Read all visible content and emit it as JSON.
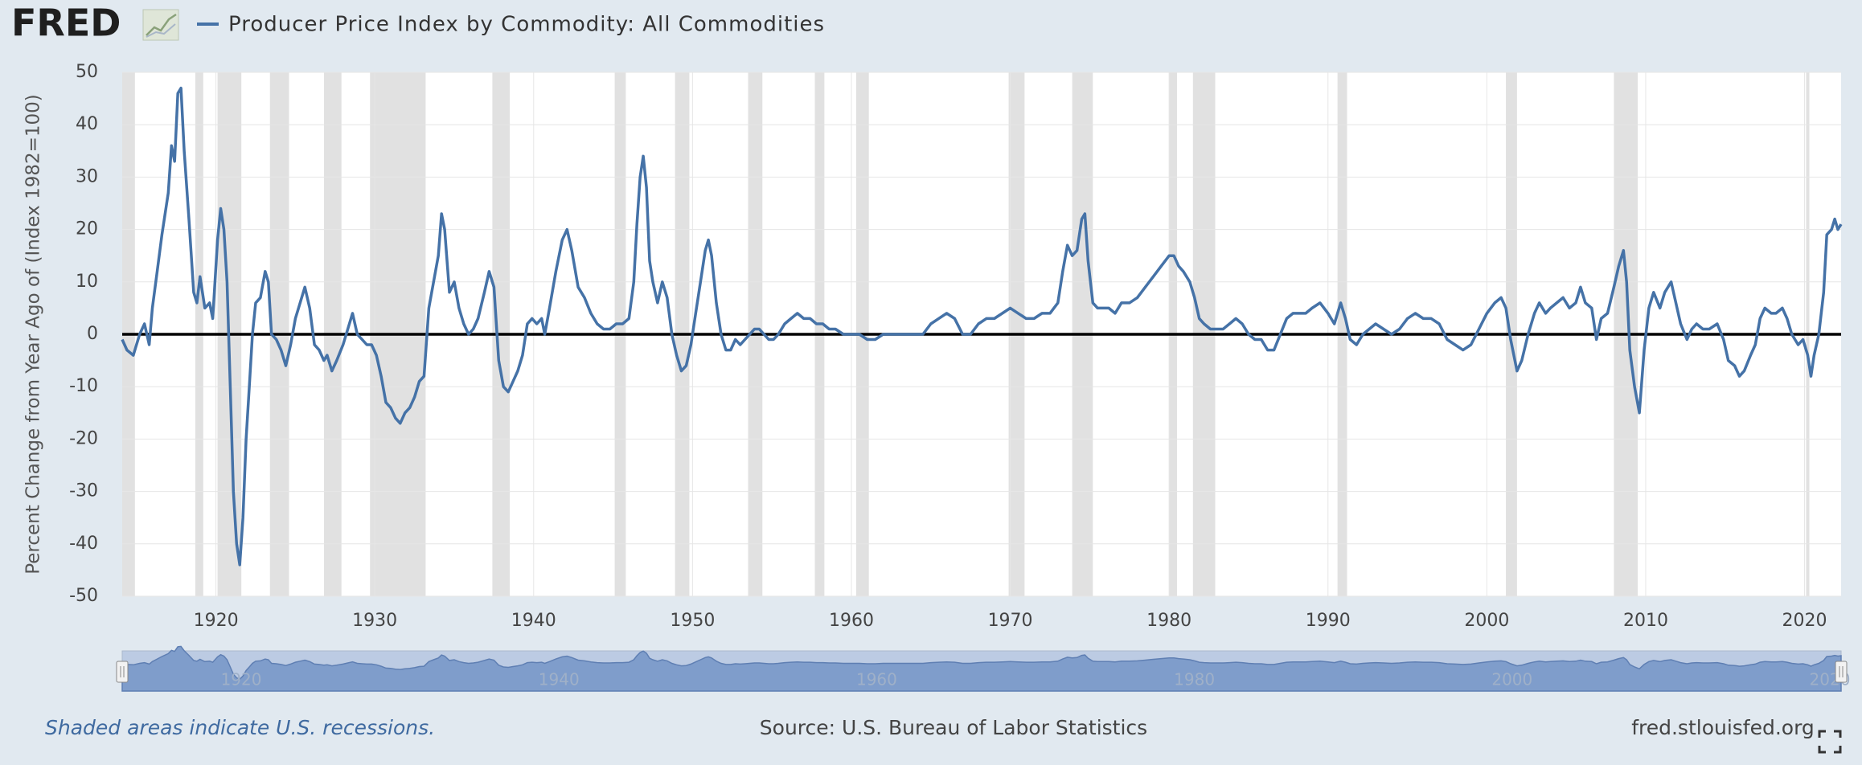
{
  "chart_data": {
    "type": "line",
    "logo": "FRED",
    "y_label": "Percent Change from Year Ago of (Index 1982=100)",
    "footer_note": "Shaded areas indicate U.S. recessions.",
    "source": "Source: U.S. Bureau of Labor Statistics",
    "site": "fred.stlouisfed.org",
    "xlim": [
      1914.1,
      2022.3
    ],
    "xticks": [
      1920,
      1930,
      1940,
      1950,
      1960,
      1970,
      1980,
      1990,
      2000,
      2010,
      2020
    ],
    "navigator_ticks": [
      1920,
      1940,
      1960,
      1980,
      2000,
      2020
    ],
    "ylim": [
      -50,
      50
    ],
    "yticks": [
      -50,
      -40,
      -30,
      -20,
      -10,
      0,
      10,
      20,
      30,
      40,
      50
    ],
    "grid": true,
    "zero_line": true,
    "recession_color": "#e1e1e1",
    "recessions": [
      [
        1914.1,
        1914.9
      ],
      [
        1918.7,
        1919.2
      ],
      [
        1920.1,
        1921.6
      ],
      [
        1923.4,
        1924.6
      ],
      [
        1926.8,
        1927.9
      ],
      [
        1929.7,
        1933.2
      ],
      [
        1937.4,
        1938.5
      ],
      [
        1945.1,
        1945.8
      ],
      [
        1948.9,
        1949.8
      ],
      [
        1953.5,
        1954.4
      ],
      [
        1957.7,
        1958.3
      ],
      [
        1960.3,
        1961.1
      ],
      [
        1969.9,
        1970.9
      ],
      [
        1973.9,
        1975.2
      ],
      [
        1980.0,
        1980.5
      ],
      [
        1981.5,
        1982.9
      ],
      [
        1990.6,
        1991.2
      ],
      [
        2001.2,
        2001.9
      ],
      [
        2008.0,
        2009.5
      ],
      [
        2020.1,
        2020.3
      ]
    ],
    "x": [
      1914.1,
      1914.4,
      1914.8,
      1915.2,
      1915.5,
      1915.8,
      1916.0,
      1916.3,
      1916.6,
      1917.0,
      1917.2,
      1917.4,
      1917.6,
      1917.8,
      1918.0,
      1918.3,
      1918.6,
      1918.8,
      1919.0,
      1919.3,
      1919.6,
      1919.8,
      1920.1,
      1920.3,
      1920.5,
      1920.7,
      1920.9,
      1921.1,
      1921.3,
      1921.5,
      1921.7,
      1921.9,
      1922.1,
      1922.3,
      1922.5,
      1922.8,
      1923.1,
      1923.3,
      1923.5,
      1923.8,
      1924.1,
      1924.4,
      1924.7,
      1925.0,
      1925.3,
      1925.6,
      1925.9,
      1926.2,
      1926.5,
      1926.8,
      1927.0,
      1927.3,
      1927.6,
      1928.0,
      1928.3,
      1928.6,
      1928.9,
      1929.2,
      1929.5,
      1929.8,
      1930.1,
      1930.4,
      1930.7,
      1931.0,
      1931.3,
      1931.6,
      1931.9,
      1932.2,
      1932.5,
      1932.8,
      1933.1,
      1933.4,
      1933.7,
      1934.0,
      1934.2,
      1934.4,
      1934.7,
      1935.0,
      1935.3,
      1935.6,
      1935.9,
      1936.2,
      1936.5,
      1936.9,
      1937.2,
      1937.5,
      1937.8,
      1938.1,
      1938.4,
      1938.7,
      1939.0,
      1939.3,
      1939.6,
      1939.9,
      1940.2,
      1940.5,
      1940.7,
      1941.0,
      1941.4,
      1941.8,
      1942.1,
      1942.4,
      1942.8,
      1943.2,
      1943.6,
      1944.0,
      1944.4,
      1944.8,
      1945.2,
      1945.6,
      1946.0,
      1946.3,
      1946.5,
      1946.7,
      1946.9,
      1947.1,
      1947.3,
      1947.5,
      1947.8,
      1948.1,
      1948.4,
      1948.7,
      1949.0,
      1949.3,
      1949.6,
      1949.9,
      1950.2,
      1950.5,
      1950.8,
      1951.0,
      1951.2,
      1951.5,
      1951.8,
      1952.1,
      1952.4,
      1952.7,
      1953.0,
      1953.3,
      1953.6,
      1953.9,
      1954.2,
      1954.5,
      1954.8,
      1955.1,
      1955.4,
      1955.8,
      1956.2,
      1956.6,
      1957.0,
      1957.4,
      1957.8,
      1958.2,
      1958.6,
      1959.0,
      1959.5,
      1960.0,
      1960.5,
      1961.0,
      1961.5,
      1962.0,
      1962.5,
      1963.0,
      1963.5,
      1964.0,
      1964.5,
      1965.0,
      1965.5,
      1966.0,
      1966.5,
      1967.0,
      1967.5,
      1968.0,
      1968.5,
      1969.0,
      1969.5,
      1970.0,
      1970.5,
      1971.0,
      1971.5,
      1972.0,
      1972.5,
      1973.0,
      1973.3,
      1973.6,
      1973.9,
      1974.2,
      1974.5,
      1974.7,
      1974.9,
      1975.2,
      1975.5,
      1975.8,
      1976.2,
      1976.6,
      1977.0,
      1977.5,
      1978.0,
      1978.5,
      1979.0,
      1979.5,
      1980.0,
      1980.3,
      1980.6,
      1980.9,
      1981.3,
      1981.6,
      1981.9,
      1982.2,
      1982.6,
      1983.0,
      1983.4,
      1983.8,
      1984.2,
      1984.6,
      1985.0,
      1985.4,
      1985.8,
      1986.2,
      1986.6,
      1987.0,
      1987.4,
      1987.8,
      1988.2,
      1988.6,
      1989.0,
      1989.5,
      1990.0,
      1990.4,
      1990.8,
      1991.1,
      1991.4,
      1991.8,
      1992.2,
      1992.6,
      1993.0,
      1993.5,
      1994.0,
      1994.5,
      1995.0,
      1995.5,
      1996.0,
      1996.5,
      1997.0,
      1997.5,
      1998.0,
      1998.5,
      1999.0,
      1999.5,
      2000.0,
      2000.5,
      2000.9,
      2001.2,
      2001.5,
      2001.9,
      2002.2,
      2002.6,
      2003.0,
      2003.3,
      2003.7,
      2004.0,
      2004.4,
      2004.8,
      2005.2,
      2005.6,
      2005.9,
      2006.2,
      2006.6,
      2006.9,
      2007.2,
      2007.6,
      2008.0,
      2008.3,
      2008.6,
      2008.8,
      2009.0,
      2009.3,
      2009.6,
      2009.9,
      2010.2,
      2010.5,
      2010.9,
      2011.2,
      2011.6,
      2011.9,
      2012.2,
      2012.6,
      2012.9,
      2013.2,
      2013.6,
      2014.0,
      2014.5,
      2014.9,
      2015.2,
      2015.6,
      2015.9,
      2016.2,
      2016.6,
      2016.9,
      2017.2,
      2017.5,
      2017.9,
      2018.2,
      2018.6,
      2018.9,
      2019.2,
      2019.6,
      2019.9,
      2020.2,
      2020.4,
      2020.6,
      2020.9,
      2021.2,
      2021.4,
      2021.7,
      2021.9,
      2022.1,
      2022.3
    ],
    "series": [
      {
        "name": "Producer Price Index by Commodity: All Commodities",
        "color": "#4572a7",
        "values": [
          -1,
          -3,
          -4,
          0,
          2,
          -2,
          5,
          12,
          19,
          27,
          36,
          33,
          46,
          47,
          35,
          22,
          8,
          6,
          11,
          5,
          6,
          3,
          18,
          24,
          20,
          10,
          -10,
          -30,
          -40,
          -44,
          -35,
          -20,
          -10,
          0,
          6,
          7,
          12,
          10,
          0,
          -1,
          -3,
          -6,
          -2,
          3,
          6,
          9,
          5,
          -2,
          -3,
          -5,
          -4,
          -7,
          -5,
          -2,
          1,
          4,
          0,
          -1,
          -2,
          -2,
          -4,
          -8,
          -13,
          -14,
          -16,
          -17,
          -15,
          -14,
          -12,
          -9,
          -8,
          5,
          10,
          15,
          23,
          20,
          8,
          10,
          5,
          2,
          0,
          1,
          3,
          8,
          12,
          9,
          -5,
          -10,
          -11,
          -9,
          -7,
          -4,
          2,
          3,
          2,
          3,
          0,
          5,
          12,
          18,
          20,
          16,
          9,
          7,
          4,
          2,
          1,
          1,
          2,
          2,
          3,
          10,
          21,
          30,
          34,
          28,
          14,
          10,
          6,
          10,
          7,
          0,
          -4,
          -7,
          -6,
          -2,
          4,
          10,
          16,
          18,
          15,
          6,
          0,
          -3,
          -3,
          -1,
          -2,
          -1,
          0,
          1,
          1,
          0,
          -1,
          -1,
          0,
          2,
          3,
          4,
          3,
          3,
          2,
          2,
          1,
          1,
          0,
          0,
          0,
          -1,
          -1,
          0,
          0,
          0,
          0,
          0,
          0,
          2,
          3,
          4,
          3,
          0,
          0,
          2,
          3,
          3,
          4,
          5,
          4,
          3,
          3,
          4,
          4,
          6,
          12,
          17,
          15,
          16,
          22,
          23,
          14,
          6,
          5,
          5,
          5,
          4,
          6,
          6,
          7,
          9,
          11,
          13,
          15,
          15,
          13,
          12,
          10,
          7,
          3,
          2,
          1,
          1,
          1,
          2,
          3,
          2,
          0,
          -1,
          -1,
          -3,
          -3,
          0,
          3,
          4,
          4,
          4,
          5,
          6,
          4,
          2,
          6,
          3,
          -1,
          -2,
          0,
          1,
          2,
          1,
          0,
          1,
          3,
          4,
          3,
          3,
          2,
          -1,
          -2,
          -3,
          -2,
          1,
          4,
          6,
          7,
          5,
          -1,
          -7,
          -5,
          0,
          4,
          6,
          4,
          5,
          6,
          7,
          5,
          6,
          9,
          6,
          5,
          -1,
          3,
          4,
          9,
          13,
          16,
          10,
          -3,
          -10,
          -15,
          -3,
          5,
          8,
          5,
          8,
          10,
          6,
          2,
          -1,
          1,
          2,
          1,
          1,
          2,
          -1,
          -5,
          -6,
          -8,
          -7,
          -4,
          -2,
          3,
          5,
          4,
          4,
          5,
          3,
          0,
          -2,
          -1,
          -4,
          -8,
          -4,
          0,
          8,
          19,
          20,
          22,
          20,
          21
        ]
      }
    ]
  }
}
